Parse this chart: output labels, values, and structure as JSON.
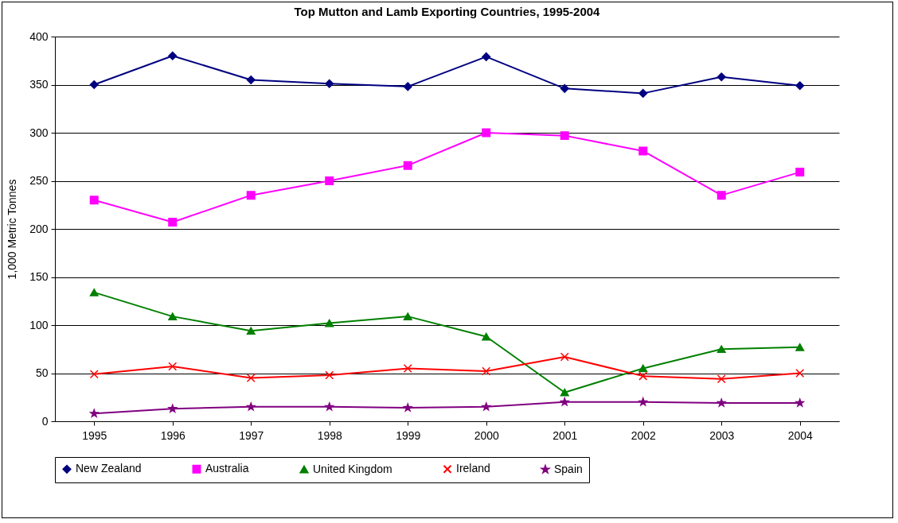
{
  "chart_data": {
    "type": "line",
    "title": "Top Mutton and Lamb Exporting Countries, 1995-2004",
    "ylabel": "1,000 Metric Tonnes",
    "categories": [
      "1995",
      "1996",
      "1997",
      "1998",
      "1999",
      "2000",
      "2001",
      "2002",
      "2003",
      "2004"
    ],
    "ylim": [
      0,
      400
    ],
    "yticks": [
      0,
      50,
      100,
      150,
      200,
      250,
      300,
      350,
      400
    ],
    "grid": "y",
    "legend": "bottom",
    "series": [
      {
        "name": "New Zealand",
        "color": "#000080",
        "marker": "diamond",
        "values": [
          350,
          380,
          355,
          351,
          348,
          379,
          346,
          341,
          358,
          349
        ]
      },
      {
        "name": "Australia",
        "color": "#ff00ff",
        "marker": "square",
        "values": [
          230,
          207,
          235,
          250,
          266,
          300,
          297,
          281,
          235,
          259
        ]
      },
      {
        "name": "United Kingdom",
        "color": "#008000",
        "marker": "triangle",
        "values": [
          134,
          109,
          94,
          102,
          109,
          88,
          30,
          55,
          75,
          77
        ]
      },
      {
        "name": "Ireland",
        "color": "#ff0000",
        "marker": "cross",
        "values": [
          49,
          57,
          45,
          48,
          55,
          52,
          67,
          47,
          44,
          50
        ]
      },
      {
        "name": "Spain",
        "color": "#800080",
        "marker": "star",
        "values": [
          8,
          13,
          15,
          15,
          14,
          15,
          20,
          20,
          19,
          19
        ]
      }
    ]
  }
}
